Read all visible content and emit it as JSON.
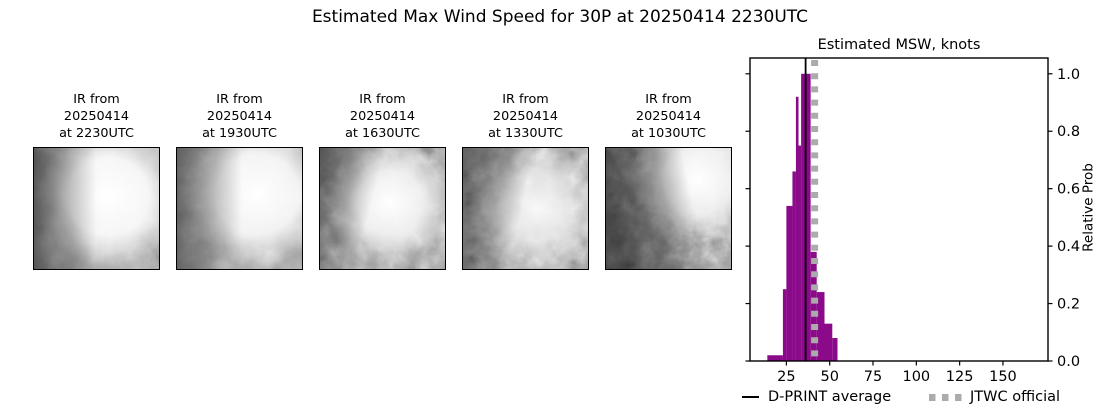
{
  "page": {
    "title": "Estimated Max Wind Speed for 30P at 20250414 2230UTC"
  },
  "panels": [
    {
      "caption": [
        "IR from",
        "20250414",
        "at 2230UTC"
      ]
    },
    {
      "caption": [
        "IR from",
        "20250414",
        "at 1930UTC"
      ]
    },
    {
      "caption": [
        "IR from",
        "20250414",
        "at 1630UTC"
      ]
    },
    {
      "caption": [
        "IR from",
        "20250414",
        "at 1330UTC"
      ]
    },
    {
      "caption": [
        "IR from",
        "20250414",
        "at 1030UTC"
      ]
    }
  ],
  "chart_data": {
    "type": "bar",
    "title": "Estimated MSW, knots",
    "xlabel": "",
    "ylabel": "Relative Prob",
    "xlim": [
      4,
      176
    ],
    "ylim": [
      0,
      1.055
    ],
    "x_ticks": [
      "25",
      "50",
      "75",
      "100",
      "125",
      "150"
    ],
    "y_ticks": [
      "0.0",
      "0.2",
      "0.4",
      "0.6",
      "0.8",
      "1.0"
    ],
    "grid": false,
    "bar_color": "#8a0a8a",
    "bars": [
      {
        "from_knots": 14,
        "to_knots": 23,
        "rel_prob": 0.02
      },
      {
        "from_knots": 23,
        "to_knots": 25,
        "rel_prob": 0.25
      },
      {
        "from_knots": 25,
        "to_knots": 28.5,
        "rel_prob": 0.54
      },
      {
        "from_knots": 28.5,
        "to_knots": 30.5,
        "rel_prob": 0.66
      },
      {
        "from_knots": 30.5,
        "to_knots": 32,
        "rel_prob": 0.92
      },
      {
        "from_knots": 32,
        "to_knots": 33.5,
        "rel_prob": 0.75
      },
      {
        "from_knots": 33.5,
        "to_knots": 39,
        "rel_prob": 1.0
      },
      {
        "from_knots": 39,
        "to_knots": 42.5,
        "rel_prob": 0.38
      },
      {
        "from_knots": 42.5,
        "to_knots": 47,
        "rel_prob": 0.24
      },
      {
        "from_knots": 47,
        "to_knots": 51.5,
        "rel_prob": 0.13
      },
      {
        "from_knots": 51.5,
        "to_knots": 54.5,
        "rel_prob": 0.08
      }
    ],
    "reference_lines": [
      {
        "name": "d-print-average",
        "label": "D-PRINT average",
        "value_knots": 36.1,
        "style": "solid",
        "color": "#000000"
      },
      {
        "name": "jtwc-official",
        "label": "JTWC official",
        "value_knots": 41.3,
        "style": "dotted",
        "color": "#ababab"
      }
    ],
    "legend_position": "bottom"
  }
}
